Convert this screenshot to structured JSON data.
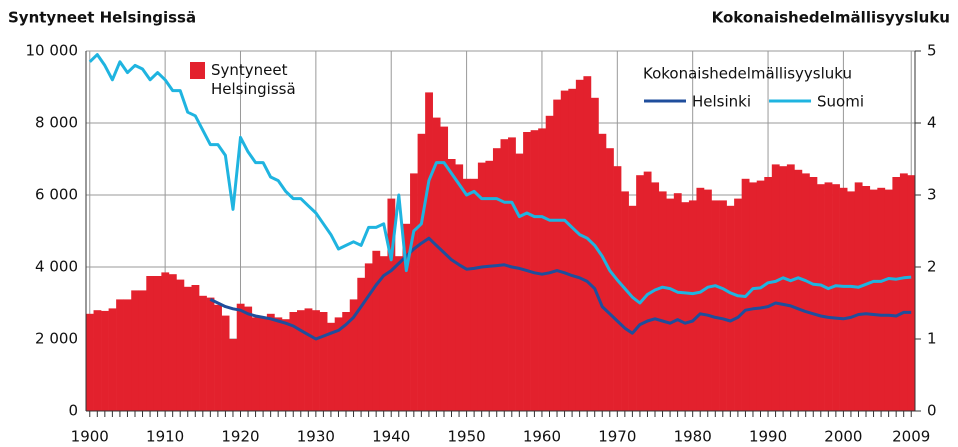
{
  "chart_data": {
    "type": "bar",
    "title": "Syntyneet Helsingissä",
    "y2_title": "Kokonaishedelmällisyysluku",
    "legend_title": "Kokonaishedelmällisyysluku",
    "x": [
      1900,
      1901,
      1902,
      1903,
      1904,
      1905,
      1906,
      1907,
      1908,
      1909,
      1910,
      1911,
      1912,
      1913,
      1914,
      1915,
      1916,
      1917,
      1918,
      1919,
      1920,
      1921,
      1922,
      1923,
      1924,
      1925,
      1926,
      1927,
      1928,
      1929,
      1930,
      1931,
      1932,
      1933,
      1934,
      1935,
      1936,
      1937,
      1938,
      1939,
      1940,
      1941,
      1942,
      1943,
      1944,
      1945,
      1946,
      1947,
      1948,
      1949,
      1950,
      1951,
      1952,
      1953,
      1954,
      1955,
      1956,
      1957,
      1958,
      1959,
      1960,
      1961,
      1962,
      1963,
      1964,
      1965,
      1966,
      1967,
      1968,
      1969,
      1970,
      1971,
      1972,
      1973,
      1974,
      1975,
      1976,
      1977,
      1978,
      1979,
      1980,
      1981,
      1982,
      1983,
      1984,
      1985,
      1986,
      1987,
      1988,
      1989,
      1990,
      1991,
      1992,
      1993,
      1994,
      1995,
      1996,
      1997,
      1998,
      1999,
      2000,
      2001,
      2002,
      2003,
      2004,
      2005,
      2006,
      2007,
      2008,
      2009
    ],
    "xlim": [
      1899.5,
      2009.5
    ],
    "xticks": [
      1900,
      1910,
      1920,
      1930,
      1940,
      1950,
      1960,
      1970,
      1980,
      1990,
      2000,
      2009
    ],
    "ylim": [
      0,
      10000
    ],
    "yticks": [
      0,
      {
        "value": 2000,
        "label": "2 000"
      },
      {
        "value": 4000,
        "label": "4 000"
      },
      {
        "value": 6000,
        "label": "6 000"
      },
      {
        "value": 8000,
        "label": "8 000"
      },
      {
        "value": 10000,
        "label": "10 000"
      }
    ],
    "y2lim": [
      0,
      5
    ],
    "y2ticks": [
      0,
      1,
      2,
      3,
      4,
      5
    ],
    "grid": true,
    "series": [
      {
        "name": "Syntyneet Helsingissä",
        "type": "bar",
        "color": "#e3212d",
        "values": [
          2700,
          2800,
          2780,
          2850,
          3100,
          3100,
          3350,
          3350,
          3750,
          3750,
          3850,
          3800,
          3650,
          3450,
          3500,
          3200,
          3150,
          2950,
          2650,
          2000,
          2980,
          2900,
          2600,
          2600,
          2700,
          2600,
          2550,
          2750,
          2800,
          2850,
          2800,
          2750,
          2450,
          2600,
          2750,
          3100,
          3700,
          4100,
          4450,
          4300,
          5900,
          4300,
          5200,
          6600,
          7700,
          8850,
          8150,
          7900,
          7000,
          6850,
          6450,
          6450,
          6900,
          6950,
          7300,
          7550,
          7600,
          7150,
          7750,
          7800,
          7850,
          8200,
          8650,
          8900,
          8950,
          9200,
          9300,
          8700,
          7700,
          7300,
          6800,
          6100,
          5700,
          6550,
          6650,
          6350,
          6100,
          5900,
          6050,
          5800,
          5850,
          6200,
          6150,
          5850,
          5850,
          5700,
          5900,
          6450,
          6350,
          6400,
          6500,
          6850,
          6800,
          6850,
          6700,
          6600,
          6500,
          6300,
          6350,
          6300,
          6200,
          6100,
          6350,
          6250,
          6150,
          6200,
          6150,
          6500,
          6600,
          6550
        ]
      },
      {
        "name": "Helsinki",
        "type": "line",
        "axis": "y2",
        "color": "#1f4e9c",
        "values": [
          null,
          null,
          null,
          null,
          null,
          null,
          null,
          null,
          null,
          null,
          null,
          null,
          null,
          null,
          null,
          null,
          1.55,
          1.5,
          1.45,
          1.42,
          1.4,
          1.35,
          1.32,
          1.3,
          1.28,
          1.25,
          1.22,
          1.18,
          1.12,
          1.06,
          1.0,
          1.04,
          1.08,
          1.12,
          1.2,
          1.3,
          1.45,
          1.6,
          1.75,
          1.88,
          1.95,
          2.05,
          2.15,
          2.25,
          2.33,
          2.4,
          2.3,
          2.2,
          2.1,
          2.03,
          1.97,
          1.98,
          2.0,
          2.01,
          2.02,
          2.03,
          2.0,
          1.98,
          1.95,
          1.92,
          1.9,
          1.92,
          1.95,
          1.92,
          1.88,
          1.85,
          1.8,
          1.7,
          1.45,
          1.35,
          1.25,
          1.15,
          1.08,
          1.2,
          1.25,
          1.28,
          1.25,
          1.22,
          1.27,
          1.22,
          1.25,
          1.35,
          1.33,
          1.3,
          1.28,
          1.25,
          1.3,
          1.4,
          1.42,
          1.43,
          1.45,
          1.5,
          1.48,
          1.46,
          1.42,
          1.38,
          1.35,
          1.32,
          1.3,
          1.29,
          1.28,
          1.3,
          1.34,
          1.35,
          1.34,
          1.33,
          1.33,
          1.32,
          1.37,
          1.37
        ]
      },
      {
        "name": "Suomi",
        "type": "line",
        "axis": "y2",
        "color": "#1fb4e0",
        "values": [
          4.85,
          4.95,
          4.8,
          4.6,
          4.85,
          4.7,
          4.8,
          4.75,
          4.6,
          4.7,
          4.6,
          4.45,
          4.45,
          4.15,
          4.1,
          3.9,
          3.7,
          3.7,
          3.55,
          2.8,
          3.8,
          3.6,
          3.45,
          3.45,
          3.25,
          3.2,
          3.05,
          2.95,
          2.95,
          2.85,
          2.75,
          2.6,
          2.45,
          2.25,
          2.3,
          2.35,
          2.3,
          2.55,
          2.55,
          2.6,
          2.1,
          3.0,
          1.95,
          2.5,
          2.6,
          3.2,
          3.45,
          3.45,
          3.3,
          3.15,
          3.0,
          3.05,
          2.95,
          2.95,
          2.95,
          2.9,
          2.9,
          2.7,
          2.75,
          2.7,
          2.7,
          2.65,
          2.65,
          2.65,
          2.55,
          2.45,
          2.4,
          2.3,
          2.15,
          1.95,
          1.82,
          1.7,
          1.58,
          1.5,
          1.62,
          1.68,
          1.72,
          1.7,
          1.65,
          1.64,
          1.63,
          1.65,
          1.72,
          1.74,
          1.7,
          1.64,
          1.6,
          1.59,
          1.7,
          1.71,
          1.78,
          1.8,
          1.85,
          1.81,
          1.85,
          1.81,
          1.76,
          1.75,
          1.7,
          1.74,
          1.73,
          1.73,
          1.72,
          1.76,
          1.8,
          1.8,
          1.84,
          1.83,
          1.85,
          1.86
        ]
      }
    ]
  }
}
